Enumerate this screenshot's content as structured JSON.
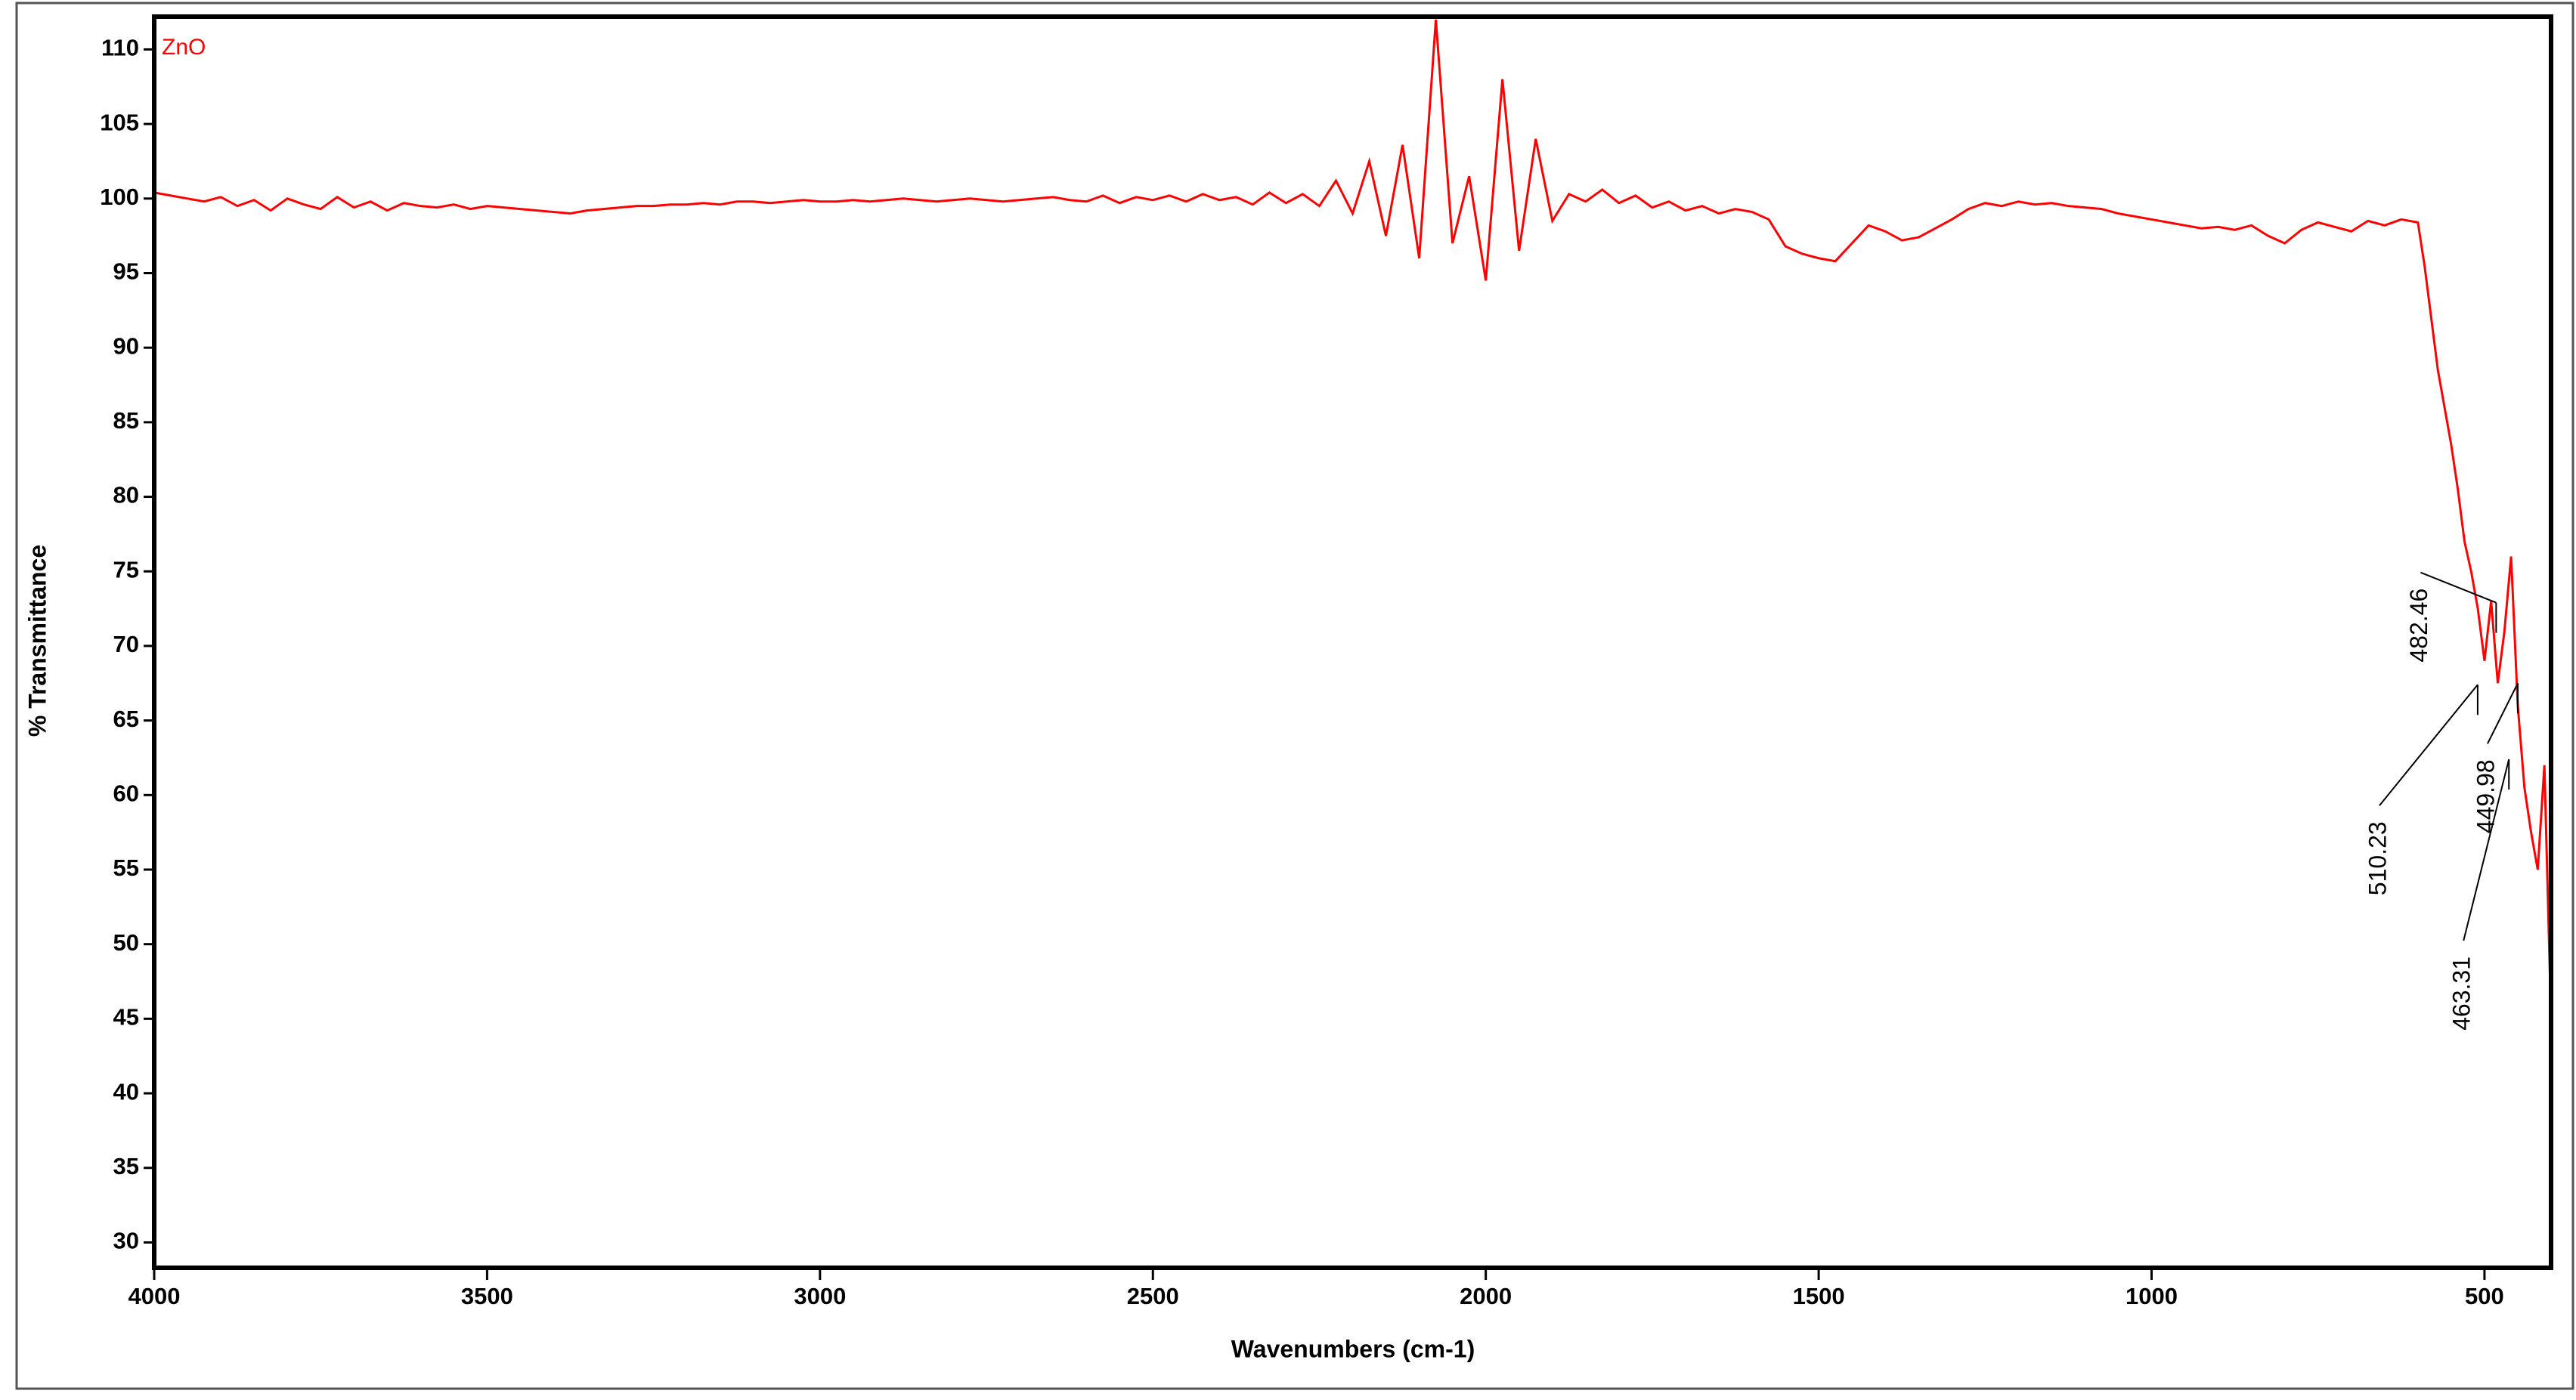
{
  "chart_data": {
    "type": "line",
    "xlabel": "Wavenumbers (cm-1)",
    "ylabel": "% Transmittance",
    "x": [
      4000,
      3975,
      3950,
      3925,
      3900,
      3875,
      3850,
      3825,
      3800,
      3775,
      3750,
      3725,
      3700,
      3675,
      3650,
      3625,
      3600,
      3575,
      3550,
      3525,
      3500,
      3475,
      3450,
      3425,
      3400,
      3375,
      3350,
      3325,
      3300,
      3275,
      3250,
      3225,
      3200,
      3175,
      3150,
      3125,
      3100,
      3075,
      3050,
      3025,
      3000,
      2975,
      2950,
      2925,
      2900,
      2875,
      2850,
      2825,
      2800,
      2775,
      2750,
      2725,
      2700,
      2675,
      2650,
      2625,
      2600,
      2575,
      2550,
      2525,
      2500,
      2475,
      2450,
      2425,
      2400,
      2375,
      2350,
      2325,
      2300,
      2275,
      2250,
      2225,
      2200,
      2175,
      2150,
      2125,
      2100,
      2075,
      2050,
      2025,
      2000,
      1975,
      1950,
      1925,
      1900,
      1875,
      1850,
      1825,
      1800,
      1775,
      1750,
      1725,
      1700,
      1675,
      1650,
      1625,
      1600,
      1575,
      1550,
      1525,
      1500,
      1475,
      1450,
      1425,
      1400,
      1375,
      1350,
      1325,
      1300,
      1275,
      1250,
      1225,
      1200,
      1175,
      1150,
      1125,
      1100,
      1075,
      1050,
      1025,
      1000,
      975,
      950,
      925,
      900,
      875,
      850,
      825,
      800,
      775,
      750,
      725,
      700,
      675,
      650,
      625,
      600,
      590,
      580,
      570,
      560,
      550,
      540,
      530,
      520,
      510,
      500,
      490,
      480,
      470,
      460,
      450,
      440,
      430,
      420,
      410,
      400
    ],
    "series": [
      {
        "name": "ZnO",
        "color": "#ff0000",
        "values": [
          100.4,
          100.2,
          100.0,
          99.8,
          100.1,
          99.5,
          99.9,
          99.2,
          100.0,
          99.6,
          99.3,
          100.1,
          99.4,
          99.8,
          99.2,
          99.7,
          99.5,
          99.4,
          99.6,
          99.3,
          99.5,
          99.4,
          99.3,
          99.2,
          99.1,
          99.0,
          99.2,
          99.3,
          99.4,
          99.5,
          99.5,
          99.6,
          99.6,
          99.7,
          99.6,
          99.8,
          99.8,
          99.7,
          99.8,
          99.9,
          99.8,
          99.8,
          99.9,
          99.8,
          99.9,
          100.0,
          99.9,
          99.8,
          99.9,
          100.0,
          99.9,
          99.8,
          99.9,
          100.0,
          100.1,
          99.9,
          99.8,
          100.2,
          99.7,
          100.1,
          99.9,
          100.2,
          99.8,
          100.3,
          99.9,
          100.1,
          99.6,
          100.4,
          99.7,
          100.3,
          99.5,
          101.2,
          99.0,
          102.5,
          97.5,
          103.6,
          96.0,
          112.0,
          97.0,
          101.5,
          94.5,
          108.0,
          96.5,
          104.0,
          98.5,
          100.3,
          99.8,
          100.6,
          99.7,
          100.2,
          99.4,
          99.8,
          99.2,
          99.5,
          99.0,
          99.3,
          99.1,
          98.6,
          96.8,
          96.3,
          96.0,
          95.8,
          97.0,
          98.2,
          97.8,
          97.2,
          97.4,
          98.0,
          98.6,
          99.3,
          99.7,
          99.5,
          99.8,
          99.6,
          99.7,
          99.5,
          99.4,
          99.3,
          99.0,
          98.8,
          98.6,
          98.4,
          98.2,
          98.0,
          98.1,
          97.9,
          98.2,
          97.5,
          97.0,
          97.9,
          98.4,
          98.1,
          97.8,
          98.5,
          98.2,
          98.6,
          98.4,
          95.5,
          92.0,
          88.5,
          86.0,
          83.5,
          80.5,
          77.0,
          75.0,
          72.5,
          69.0,
          73.0,
          67.5,
          71.0,
          76.0,
          66.0,
          60.5,
          57.5,
          55.0,
          62.0,
          45.0
        ]
      }
    ],
    "annotations": [
      {
        "x": 482.46,
        "y": 72.9
      },
      {
        "x": 510.23,
        "y": 67.4
      },
      {
        "x": 449.98,
        "y": 67.5
      },
      {
        "x": 463.31,
        "y": 62.4
      }
    ],
    "xlim": [
      4000,
      400
    ],
    "ylim": [
      28.3,
      112.2
    ],
    "xticks": [
      4000,
      3500,
      3000,
      2500,
      2000,
      1500,
      1000,
      500
    ],
    "yticks": [
      30,
      35,
      40,
      45,
      50,
      55,
      60,
      65,
      70,
      75,
      80,
      85,
      90,
      95,
      100,
      105,
      110
    ],
    "grid": false
  }
}
